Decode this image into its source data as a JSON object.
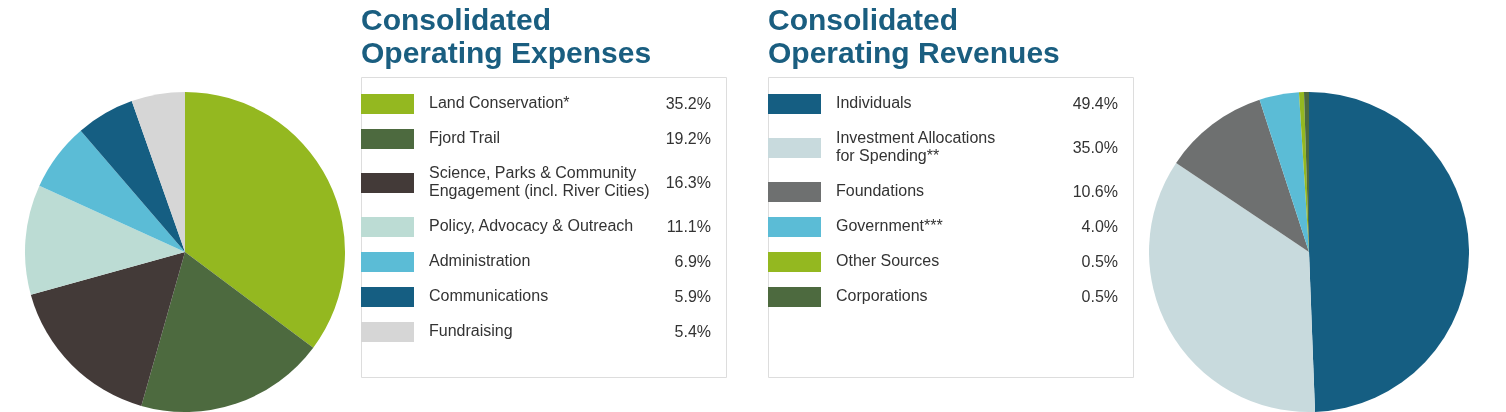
{
  "chart_data": [
    {
      "type": "pie",
      "title": "Consolidated Operating Expenses",
      "legend": "right",
      "categories": [
        "Land Conservation*",
        "Fjord Trail",
        "Science, Parks & Community Engagement (incl. River Cities)",
        "Policy, Advocacy & Outreach",
        "Administration",
        "Communications",
        "Fundraising"
      ],
      "values": [
        35.2,
        19.2,
        16.3,
        11.1,
        6.9,
        5.9,
        5.4
      ],
      "value_labels": [
        "35.2%",
        "19.2%",
        "16.3%",
        "11.1%",
        "6.9%",
        "5.9%",
        "5.4%"
      ],
      "colors": [
        "#94b820",
        "#4d6a3f",
        "#433a38",
        "#bcdcd4",
        "#5bbcd6",
        "#155e82",
        "#d6d6d6"
      ]
    },
    {
      "type": "pie",
      "title": "Consolidated Operating Revenues",
      "legend": "left",
      "categories": [
        "Individuals",
        "Investment Allocations for Spending**",
        "Foundations",
        "Government***",
        "Other Sources",
        "Corporations"
      ],
      "values": [
        49.4,
        35.0,
        10.6,
        4.0,
        0.5,
        0.5
      ],
      "value_labels": [
        "49.4%",
        "35.0%",
        "10.6%",
        "4.0%",
        "0.5%",
        "0.5%"
      ],
      "colors": [
        "#155e82",
        "#c8dadd",
        "#6e7070",
        "#5bbcd6",
        "#94b820",
        "#4d6a3f"
      ]
    }
  ]
}
